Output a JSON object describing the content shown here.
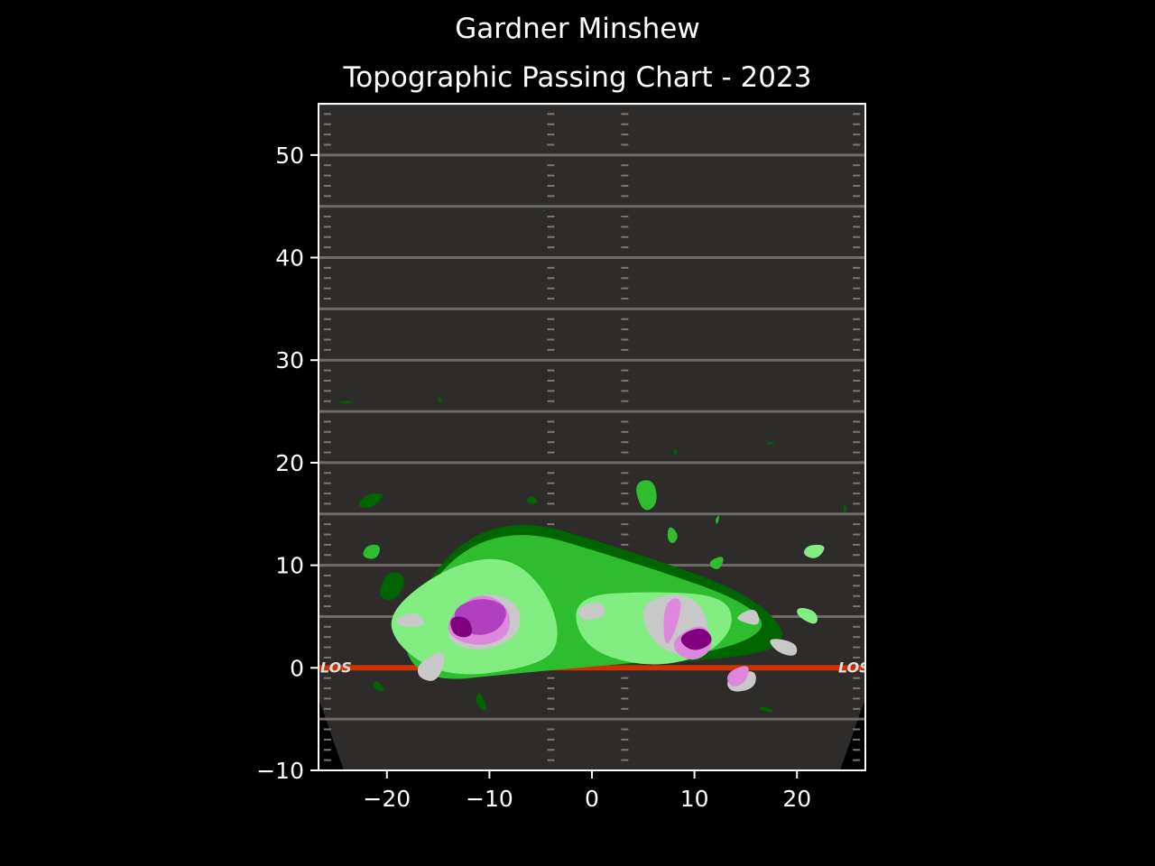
{
  "header": {
    "title": "Gardner Minshew",
    "subtitle": "Topographic Passing Chart - 2023"
  },
  "field": {
    "los_label": "LOS"
  },
  "chart_data": {
    "type": "contour",
    "title": "Topographic Passing Chart - 2023",
    "xlim": [
      -26.67,
      26.67
    ],
    "ylim": [
      -10,
      55
    ],
    "xticks": [
      -20,
      -10,
      0,
      10,
      20
    ],
    "yticks": [
      -10,
      0,
      10,
      20,
      30,
      40,
      50
    ],
    "xtick_labels": [
      "−20",
      "−10",
      "0",
      "10",
      "20"
    ],
    "ytick_labels": [
      "−10",
      "0",
      "10",
      "20",
      "30",
      "40",
      "50"
    ],
    "grid": false,
    "line_of_scrimmage_y": 0,
    "colors": {
      "background": "#000000",
      "field": "#2e2b2b",
      "level_1": "#006400",
      "level_2": "#2ebd2e",
      "level_3": "#82ee82",
      "level_4": "#c8c8c8",
      "level_5": "#dd88dd",
      "level_6": "#b040c0",
      "level_7": "#800080",
      "los": "#cc3300"
    },
    "density_peaks": [
      {
        "x": -12.5,
        "y": 4.0
      },
      {
        "x": 10.0,
        "y": 2.5
      }
    ],
    "regions": [
      {
        "level": 1,
        "points": [
          [
            -19,
            5
          ],
          [
            -10,
            15.5
          ],
          [
            5,
            11
          ],
          [
            16,
            7
          ],
          [
            20,
            2
          ],
          [
            10,
            0.5
          ],
          [
            -7,
            0
          ],
          [
            -17,
            -1
          ]
        ]
      },
      {
        "level": 2,
        "points": [
          [
            -19,
            4.5
          ],
          [
            -10,
            14.5
          ],
          [
            5,
            10
          ],
          [
            15,
            6.5
          ],
          [
            17.5,
            3.5
          ],
          [
            10,
            1
          ],
          [
            -7,
            -0.5
          ],
          [
            -17,
            -1.5
          ]
        ]
      },
      {
        "level": 3,
        "points": [
          [
            -20,
            5.5
          ],
          [
            -14,
            10
          ],
          [
            -8,
            11
          ],
          [
            -4,
            7
          ],
          [
            -3,
            2
          ],
          [
            -6,
            0
          ],
          [
            -14,
            -1
          ],
          [
            -19,
            2
          ]
        ]
      },
      {
        "level": 3,
        "points": [
          [
            -2,
            7
          ],
          [
            6,
            7.5
          ],
          [
            13,
            7
          ],
          [
            14,
            4
          ],
          [
            11,
            1
          ],
          [
            5,
            0
          ],
          [
            -1,
            2
          ]
        ]
      },
      {
        "level": 3,
        "points": [
          [
            20,
            6
          ],
          [
            22,
            5.5
          ],
          [
            22,
            4
          ],
          [
            20,
            5
          ]
        ]
      },
      {
        "level": 3,
        "points": [
          [
            21,
            12
          ],
          [
            23,
            12
          ],
          [
            22,
            10.5
          ],
          [
            20.5,
            11
          ]
        ]
      },
      {
        "level": 4,
        "points": [
          [
            -17,
            0.5
          ],
          [
            -14,
            2
          ],
          [
            -15,
            -1.5
          ],
          [
            -17,
            -1
          ]
        ]
      },
      {
        "level": 4,
        "points": [
          [
            -19,
            5
          ],
          [
            -17,
            5.5
          ],
          [
            -16,
            4
          ],
          [
            -19,
            4
          ]
        ]
      },
      {
        "level": 4,
        "points": [
          [
            -14,
            4.5
          ],
          [
            -11,
            7.5
          ],
          [
            -7,
            6.5
          ],
          [
            -7,
            3
          ],
          [
            -11,
            1.5
          ],
          [
            -14,
            2.5
          ]
        ]
      },
      {
        "level": 4,
        "points": [
          [
            -1.5,
            6
          ],
          [
            1,
            6.5
          ],
          [
            1.5,
            5
          ],
          [
            -1,
            4.5
          ]
        ]
      },
      {
        "level": 4,
        "points": [
          [
            5,
            6.5
          ],
          [
            9,
            7.5
          ],
          [
            11.5,
            5
          ],
          [
            11,
            1
          ],
          [
            7,
            1.5
          ],
          [
            5,
            4
          ]
        ]
      },
      {
        "level": 4,
        "points": [
          [
            14,
            5
          ],
          [
            16,
            6
          ],
          [
            16.5,
            4
          ],
          [
            14.5,
            4.5
          ]
        ]
      },
      {
        "level": 4,
        "points": [
          [
            17,
            3
          ],
          [
            20,
            2.5
          ],
          [
            20,
            1
          ],
          [
            18,
            1.5
          ]
        ]
      },
      {
        "level": 4,
        "points": [
          [
            13,
            -1
          ],
          [
            16,
            0
          ],
          [
            16,
            -2
          ],
          [
            13.5,
            -2.5
          ]
        ]
      },
      {
        "level": 5,
        "points": [
          [
            -14,
            5
          ],
          [
            -11,
            7.5
          ],
          [
            -8,
            6
          ],
          [
            -8,
            3
          ],
          [
            -11,
            2
          ],
          [
            -14,
            3
          ]
        ]
      },
      {
        "level": 5,
        "points": [
          [
            7,
            6.5
          ],
          [
            9,
            7
          ],
          [
            8,
            3
          ],
          [
            7,
            2
          ]
        ]
      },
      {
        "level": 5,
        "points": [
          [
            8,
            3
          ],
          [
            11,
            4.5
          ],
          [
            12,
            2
          ],
          [
            10,
            0.5
          ],
          [
            8,
            1.5
          ]
        ]
      },
      {
        "level": 5,
        "points": [
          [
            13,
            -0.5
          ],
          [
            15.5,
            0.5
          ],
          [
            15,
            -1.5
          ],
          [
            13.5,
            -2
          ]
        ]
      },
      {
        "level": 6,
        "points": [
          [
            -14,
            5.5
          ],
          [
            -11,
            7
          ],
          [
            -8,
            6
          ],
          [
            -9,
            3.5
          ],
          [
            -12,
            3
          ]
        ]
      },
      {
        "level": 7,
        "points": [
          [
            -14,
            5
          ],
          [
            -12,
            5
          ],
          [
            -11.5,
            3
          ],
          [
            -13.5,
            3
          ]
        ]
      },
      {
        "level": 7,
        "points": [
          [
            9,
            3.5
          ],
          [
            11,
            4
          ],
          [
            12,
            2.5
          ],
          [
            10,
            1.5
          ],
          [
            8.5,
            2.5
          ]
        ]
      },
      {
        "level": 1,
        "points": [
          [
            -22,
            17
          ],
          [
            -20,
            17
          ],
          [
            -21.5,
            15.5
          ],
          [
            -23,
            15.7
          ]
        ]
      },
      {
        "level": 1,
        "points": [
          [
            -20,
            9.5
          ],
          [
            -18,
            9
          ],
          [
            -19,
            6.5
          ],
          [
            -21,
            6.8
          ]
        ]
      },
      {
        "level": 1,
        "points": [
          [
            -11,
            -2
          ],
          [
            -10,
            -4.5
          ],
          [
            -11.5,
            -3.5
          ]
        ]
      },
      {
        "level": 1,
        "points": [
          [
            -21,
            -1
          ],
          [
            -20,
            -2.5
          ],
          [
            -21.5,
            -2
          ]
        ]
      },
      {
        "level": 1,
        "points": [
          [
            -6,
            17
          ],
          [
            -5,
            16
          ],
          [
            -6.5,
            16
          ]
        ]
      },
      {
        "level": 1,
        "points": [
          [
            16,
            -4
          ],
          [
            18,
            -4.5
          ],
          [
            17,
            -3.7
          ]
        ]
      },
      {
        "level": 1,
        "points": [
          [
            -25,
            26
          ],
          [
            -23,
            26
          ],
          [
            -24,
            25.7
          ]
        ]
      },
      {
        "level": 1,
        "points": [
          [
            -15,
            26.5
          ],
          [
            -14.5,
            26
          ],
          [
            -15,
            25.8
          ]
        ]
      },
      {
        "level": 1,
        "points": [
          [
            -4.7,
            44.8
          ],
          [
            -4.5,
            44.5
          ],
          [
            -4.8,
            44.4
          ]
        ]
      },
      {
        "level": 1,
        "points": [
          [
            8,
            21.5
          ],
          [
            8.5,
            21
          ],
          [
            8,
            20.7
          ]
        ]
      },
      {
        "level": 1,
        "points": [
          [
            17,
            22
          ],
          [
            18,
            22
          ],
          [
            17.3,
            21.7
          ]
        ]
      },
      {
        "level": 1,
        "points": [
          [
            24.5,
            16
          ],
          [
            25,
            15.5
          ],
          [
            24.6,
            15
          ]
        ]
      },
      {
        "level": 2,
        "points": [
          [
            4,
            18
          ],
          [
            6,
            18.5
          ],
          [
            6.5,
            16
          ],
          [
            5,
            15
          ]
        ]
      },
      {
        "level": 2,
        "points": [
          [
            7.5,
            14
          ],
          [
            8.5,
            13
          ],
          [
            8,
            12
          ],
          [
            7.3,
            12.5
          ]
        ]
      },
      {
        "level": 2,
        "points": [
          [
            -22,
            12
          ],
          [
            -20.5,
            12
          ],
          [
            -21,
            10.5
          ],
          [
            -22.5,
            10.8
          ]
        ]
      },
      {
        "level": 2,
        "points": [
          [
            11.5,
            10.5
          ],
          [
            13,
            11
          ],
          [
            12.5,
            9.5
          ],
          [
            11.5,
            9.8
          ]
        ]
      },
      {
        "level": 2,
        "points": [
          [
            12,
            14.5
          ],
          [
            12.5,
            15
          ],
          [
            12.2,
            13.8
          ]
        ]
      }
    ]
  }
}
